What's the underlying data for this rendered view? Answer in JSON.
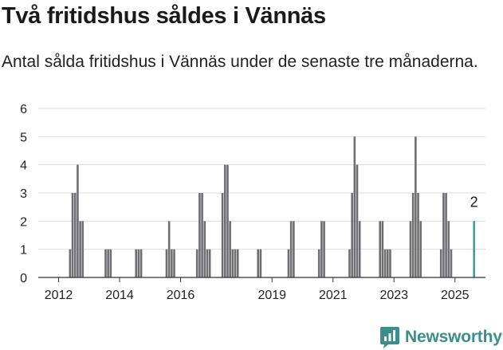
{
  "title": "Två fritidshus såldes i Vännäs",
  "subtitle": "Antal sålda fritidshus i Vännäs under de senaste tre månaderna.",
  "brand": {
    "name": "Newsworthy",
    "icon": "newsworthy-logo-icon"
  },
  "colors": {
    "bar": "#6e6d72",
    "highlight": "#2a9d8f",
    "grid": "#dddddd",
    "axis": "#333333",
    "brand": "#3a8f8a"
  },
  "chart_data": {
    "type": "bar",
    "title": "Två fritidshus såldes i Vännäs",
    "xlabel": "",
    "ylabel": "",
    "ylim": [
      0,
      6
    ],
    "xlim": [
      "2011-05",
      "2026-01"
    ],
    "yticks": [
      "0",
      "1",
      "2",
      "3",
      "4",
      "5",
      "6"
    ],
    "xticks": [
      "2012",
      "2014",
      "2016",
      "2019",
      "2021",
      "2023",
      "2025"
    ],
    "xtick_dates": [
      "2012-01",
      "2014-01",
      "2016-01",
      "2019-01",
      "2021-01",
      "2023-01",
      "2025-01"
    ],
    "grid": true,
    "categories": [
      "2012-05",
      "2012-06",
      "2012-07",
      "2012-08",
      "2012-09",
      "2012-10",
      "2013-07",
      "2013-08",
      "2013-09",
      "2014-07",
      "2014-08",
      "2014-09",
      "2015-07",
      "2015-08",
      "2015-09",
      "2015-10",
      "2016-07",
      "2016-08",
      "2016-09",
      "2016-10",
      "2016-11",
      "2016-12",
      "2017-05",
      "2017-06",
      "2017-07",
      "2017-08",
      "2017-09",
      "2017-10",
      "2017-11",
      "2018-07",
      "2018-08",
      "2019-07",
      "2019-08",
      "2019-09",
      "2020-07",
      "2020-08",
      "2020-09",
      "2021-07",
      "2021-08",
      "2021-09",
      "2021-10",
      "2021-11",
      "2022-07",
      "2022-08",
      "2022-09",
      "2022-10",
      "2022-11",
      "2023-07",
      "2023-08",
      "2023-09",
      "2023-10",
      "2023-11",
      "2024-07",
      "2024-08",
      "2024-09",
      "2024-10",
      "2024-11",
      "2025-08"
    ],
    "values": [
      1,
      3,
      3,
      4,
      2,
      2,
      1,
      1,
      1,
      1,
      1,
      1,
      1,
      2,
      1,
      1,
      1,
      3,
      3,
      2,
      1,
      1,
      3,
      4,
      4,
      2,
      1,
      1,
      1,
      1,
      1,
      1,
      2,
      2,
      1,
      2,
      2,
      1,
      3,
      5,
      4,
      2,
      2,
      2,
      1,
      1,
      1,
      2,
      3,
      5,
      3,
      2,
      1,
      3,
      3,
      2,
      1,
      2
    ],
    "highlight": {
      "category": "2025-08",
      "value": 2,
      "label": "2"
    }
  }
}
